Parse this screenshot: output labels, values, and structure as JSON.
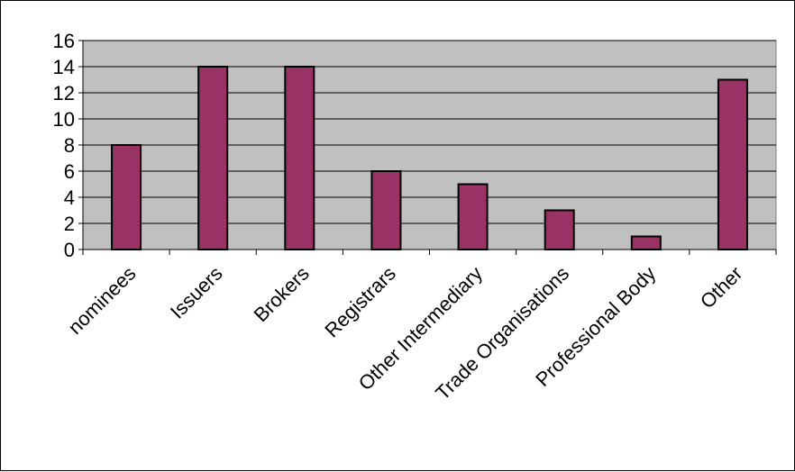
{
  "chart_data": {
    "type": "bar",
    "categories": [
      "nominees",
      "Issuers",
      "Brokers",
      "Registrars",
      "Other Intermediary",
      "Trade Organisations",
      "Professional Body",
      "Other"
    ],
    "values": [
      8,
      14,
      14,
      6,
      5,
      3,
      1,
      13
    ],
    "title": "",
    "xlabel": "",
    "ylabel": "",
    "ylim": [
      0,
      16
    ],
    "yticks": [
      0,
      2,
      4,
      6,
      8,
      10,
      12,
      14,
      16
    ],
    "grid": true,
    "legend": "none",
    "colors": {
      "bar": "#993366",
      "plot_background": "#c0c0c0",
      "gridline": "#000000"
    }
  }
}
